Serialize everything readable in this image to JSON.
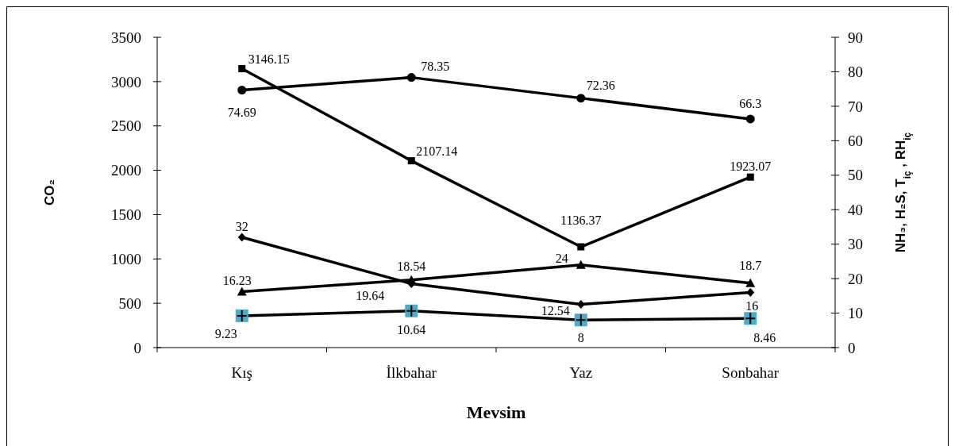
{
  "chart_data": {
    "type": "line",
    "xlabel": "Mevsim",
    "ylabel": "CO₂",
    "y2label": "NH₃, H₂S, T$_{iç}$, RH$_{iç}$",
    "categories": [
      "Kış",
      "İlkbahar",
      "Yaz",
      "Sonbahar"
    ],
    "series": [
      {
        "color": "#000000",
        "values": [
          3146.15,
          2107.14,
          1136.37,
          1923.07
        ],
        "marker": "square"
      },
      {
        "color": "#000000",
        "values": [
          74.69,
          78.35,
          72.36,
          66.3
        ],
        "axis": "y2",
        "marker": "circle"
      },
      {
        "color": "#000000",
        "values": [
          16.23,
          19.64,
          24,
          18.7
        ],
        "axis": "y2",
        "marker": "triangle"
      },
      {
        "color": "#000000",
        "values": [
          32,
          18.54,
          12.54,
          16
        ],
        "axis": "y2",
        "marker": "diamond"
      },
      {
        "color": "#000000",
        "values": [
          9.23,
          10.64,
          8,
          8.46
        ],
        "axis": "y2",
        "marker": "square",
        "colors": [
          "#4bacc6",
          "#4bacc6",
          "#4bacc6",
          "#4bacc6"
        ]
      }
    ],
    "ylim": [
      0,
      3500
    ],
    "yticks": [
      0,
      500,
      1000,
      1500,
      2000,
      2500,
      3000,
      3500
    ],
    "y2lim": [
      0,
      90
    ],
    "y2ticks": [
      0,
      10,
      20,
      30,
      40,
      50,
      60,
      70,
      80,
      90
    ],
    "data_labels": true,
    "line_style": "solid"
  }
}
